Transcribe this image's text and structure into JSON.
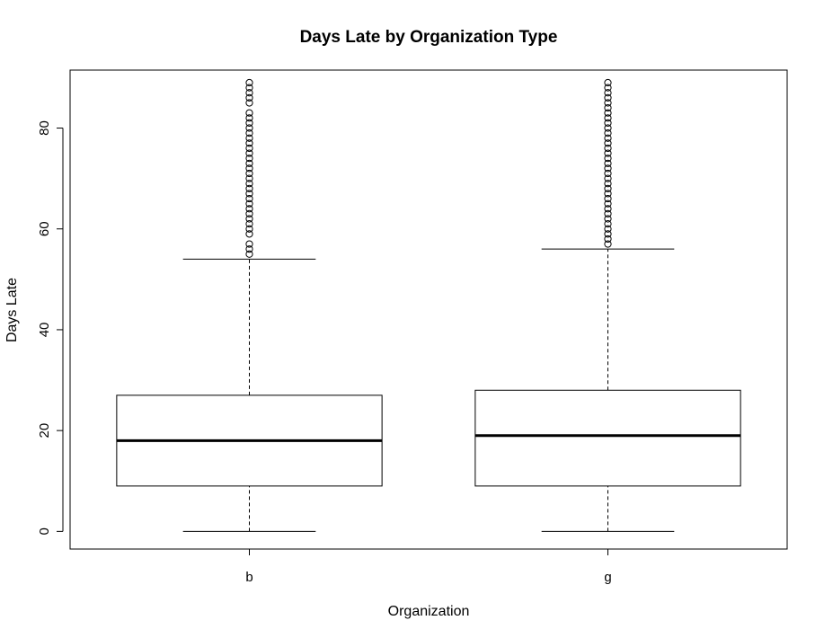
{
  "chart_data": {
    "type": "boxplot",
    "title": "Days Late by Organization Type",
    "xlabel": "Organization",
    "ylabel": "Days Late",
    "categories": [
      "b",
      "g"
    ],
    "ylim": [
      -3.5,
      91.5
    ],
    "yticks": [
      0,
      20,
      40,
      60,
      80
    ],
    "grid": false,
    "boxes": [
      {
        "category": "b",
        "min": 0,
        "q1": 9,
        "median": 18,
        "q3": 27,
        "max": 54,
        "outliers": [
          55,
          56,
          57,
          59,
          60,
          61,
          62,
          63,
          64,
          65,
          66,
          67,
          68,
          69,
          70,
          71,
          72,
          73,
          74,
          75,
          76,
          77,
          78,
          79,
          80,
          81,
          82,
          83,
          85,
          86,
          87,
          88,
          89
        ]
      },
      {
        "category": "g",
        "min": 0,
        "q1": 9,
        "median": 19,
        "q3": 28,
        "max": 56,
        "outliers": [
          57,
          58,
          59,
          60,
          61,
          62,
          63,
          64,
          65,
          66,
          67,
          68,
          69,
          70,
          71,
          72,
          73,
          74,
          75,
          76,
          77,
          78,
          79,
          80,
          81,
          82,
          83,
          84,
          85,
          86,
          87,
          88,
          89
        ]
      }
    ]
  }
}
